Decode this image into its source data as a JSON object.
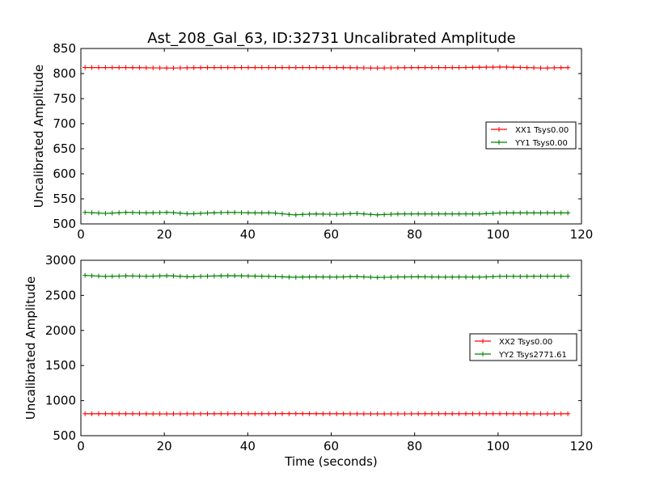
{
  "title": "Ast_208_Gal_63, ID:32731 Uncalibrated Amplitude",
  "chart_data": [
    {
      "type": "line",
      "title": "Ast_208_Gal_63, ID:32731 Uncalibrated Amplitude",
      "xlabel": "",
      "ylabel": "Uncalibrated Amplitude",
      "xlim": [
        0,
        120
      ],
      "ylim": [
        500,
        850
      ],
      "xticks": [
        0,
        20,
        40,
        60,
        80,
        100,
        120
      ],
      "yticks": [
        500,
        550,
        600,
        650,
        700,
        750,
        800,
        850
      ],
      "legend_position": "center-right",
      "series": [
        {
          "name": "XX1 Tsys0.00",
          "color": "#ff0000",
          "x": [
            1,
            11,
            21,
            31,
            41,
            51,
            61,
            71,
            81,
            91,
            101,
            111,
            117
          ],
          "y": [
            812,
            812,
            811,
            812,
            812,
            812,
            812,
            811,
            812,
            812,
            813,
            811,
            812
          ]
        },
        {
          "name": "YY1 Tsys0.00",
          "color": "#008000",
          "x": [
            1,
            6,
            11,
            16,
            21,
            26,
            31,
            36,
            41,
            46,
            51,
            56,
            61,
            66,
            71,
            76,
            81,
            86,
            91,
            96,
            101,
            106,
            111,
            117
          ],
          "y": [
            523,
            521,
            523,
            522,
            523,
            520,
            522,
            523,
            522,
            522,
            518,
            520,
            519,
            521,
            518,
            520,
            520,
            520,
            520,
            520,
            522,
            522,
            522,
            522
          ]
        }
      ]
    },
    {
      "type": "line",
      "title": "",
      "xlabel": "Time (seconds)",
      "ylabel": "Uncalibrated Amplitude",
      "xlim": [
        0,
        120
      ],
      "ylim": [
        500,
        3000
      ],
      "xticks": [
        0,
        20,
        40,
        60,
        80,
        100,
        120
      ],
      "yticks": [
        500,
        1000,
        1500,
        2000,
        2500,
        3000
      ],
      "legend_position": "center-right",
      "series": [
        {
          "name": "XX2 Tsys0.00",
          "color": "#ff0000",
          "x": [
            1,
            11,
            21,
            31,
            41,
            51,
            61,
            71,
            81,
            91,
            101,
            111,
            117
          ],
          "y": [
            812,
            812,
            811,
            812,
            812,
            814,
            812,
            811,
            812,
            812,
            813,
            811,
            812
          ]
        },
        {
          "name": "YY2 Tsys2771.61",
          "color": "#008000",
          "x": [
            1,
            6,
            11,
            16,
            21,
            26,
            31,
            36,
            41,
            46,
            51,
            56,
            61,
            66,
            71,
            76,
            81,
            86,
            91,
            96,
            101,
            106,
            111,
            117
          ],
          "y": [
            2785,
            2770,
            2778,
            2772,
            2780,
            2765,
            2775,
            2780,
            2775,
            2770,
            2758,
            2764,
            2760,
            2768,
            2755,
            2762,
            2765,
            2760,
            2762,
            2760,
            2772,
            2770,
            2773,
            2772
          ]
        }
      ]
    }
  ]
}
